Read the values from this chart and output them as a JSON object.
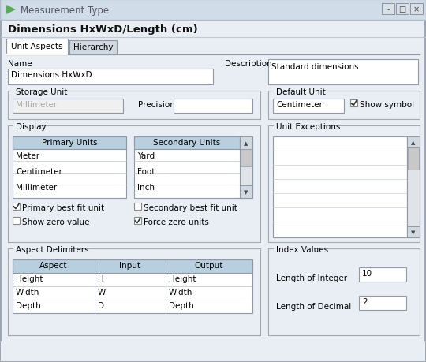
{
  "title_bar_text": "Measurement Type",
  "dialog_bg": "#e8eef4",
  "content_bg": "#e8eef4",
  "main_title": "Dimensions HxWxD/Length (cm)",
  "tab1": "Unit Aspects",
  "tab2": "Hierarchy",
  "label_name": "Name",
  "label_description": "Description",
  "field_name": "Dimensions HxWxD",
  "field_description": "Standard dimensions",
  "label_storage": "Storage Unit",
  "field_storage": "Millimeter",
  "label_precision": "Precision",
  "label_default_unit": "Default Unit",
  "field_default_unit": "Centimeter",
  "checkbox_show_symbol": "Show symbol",
  "group_display": "Display",
  "col_primary": "Primary Units",
  "primary_items": [
    "Meter",
    "Centimeter",
    "Millimeter"
  ],
  "col_secondary": "Secondary Units",
  "secondary_items": [
    "Yard",
    "Foot",
    "Inch"
  ],
  "cb_primary_best": "Primary best fit unit",
  "cb_show_zero": "Show zero value",
  "cb_secondary_best": "Secondary best fit unit",
  "cb_force_zero": "Force zero units",
  "cb_primary_best_checked": true,
  "cb_show_zero_checked": false,
  "cb_secondary_best_checked": false,
  "cb_force_zero_checked": true,
  "group_unit_exceptions": "Unit Exceptions",
  "group_aspect": "Aspect Delimiters",
  "col_aspect": "Aspect",
  "col_input": "Input",
  "col_output": "Output",
  "aspect_rows": [
    [
      "Height",
      "H",
      "Height"
    ],
    [
      "Width",
      "W",
      "Width"
    ],
    [
      "Depth",
      "D",
      "Depth"
    ]
  ],
  "group_index": "Index Values",
  "label_length_int": "Length of Integer",
  "value_length_int": "10",
  "label_length_dec": "Length of Decimal",
  "value_length_dec": "2",
  "header_bg": "#b8cfe0",
  "scrollbar_bg": "#c8c8c8",
  "text_color": "#000000",
  "gray_text": "#aaaaaa",
  "group_border": "#a0a8b0",
  "titlebar_bg": "#d0dce8",
  "font_size": 7.5,
  "title_font_size": 9.5
}
